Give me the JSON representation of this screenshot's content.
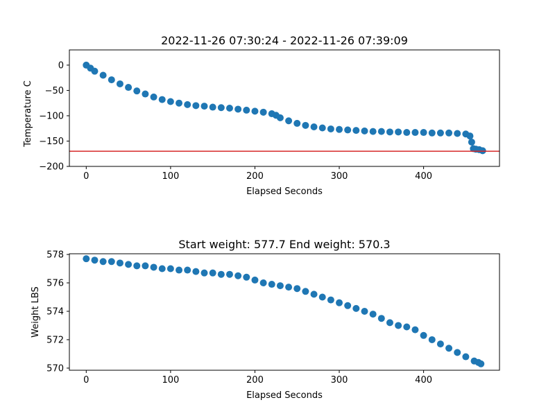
{
  "chart_data": [
    {
      "type": "scatter",
      "title": "2022-11-26 07:30:24 - 2022-11-26 07:39:09",
      "xlabel": "Elapsed Seconds",
      "ylabel": "Temperature C",
      "xlim": [
        -20,
        490
      ],
      "ylim": [
        -200,
        30
      ],
      "xticks": [
        0,
        100,
        200,
        300,
        400
      ],
      "yticks": [
        0,
        -50,
        -100,
        -150,
        -200
      ],
      "grid": false,
      "marker_color": "#1f77b4",
      "reference_line": {
        "y": -170,
        "color": "#d62728"
      },
      "series": [
        {
          "points": [
            [
              0,
              0
            ],
            [
              5,
              -6
            ],
            [
              10,
              -12
            ],
            [
              20,
              -20
            ],
            [
              30,
              -29
            ],
            [
              40,
              -37
            ],
            [
              50,
              -44
            ],
            [
              60,
              -51
            ],
            [
              70,
              -57
            ],
            [
              80,
              -63
            ],
            [
              90,
              -68
            ],
            [
              100,
              -72
            ],
            [
              110,
              -75
            ],
            [
              120,
              -78
            ],
            [
              130,
              -80
            ],
            [
              140,
              -81
            ],
            [
              150,
              -83
            ],
            [
              160,
              -84
            ],
            [
              170,
              -85
            ],
            [
              180,
              -87
            ],
            [
              190,
              -89
            ],
            [
              200,
              -91
            ],
            [
              210,
              -93
            ],
            [
              220,
              -96
            ],
            [
              225,
              -99
            ],
            [
              230,
              -104
            ],
            [
              240,
              -110
            ],
            [
              250,
              -115
            ],
            [
              260,
              -119
            ],
            [
              270,
              -122
            ],
            [
              280,
              -124
            ],
            [
              290,
              -126
            ],
            [
              300,
              -127
            ],
            [
              310,
              -128
            ],
            [
              320,
              -129
            ],
            [
              330,
              -130
            ],
            [
              340,
              -131
            ],
            [
              350,
              -131
            ],
            [
              360,
              -132
            ],
            [
              370,
              -132
            ],
            [
              380,
              -133
            ],
            [
              390,
              -133
            ],
            [
              400,
              -133
            ],
            [
              410,
              -134
            ],
            [
              420,
              -134
            ],
            [
              430,
              -134
            ],
            [
              440,
              -135
            ],
            [
              450,
              -136
            ],
            [
              455,
              -140
            ],
            [
              457,
              -152
            ],
            [
              459,
              -165
            ],
            [
              462,
              -166
            ],
            [
              466,
              -167
            ],
            [
              470,
              -169
            ]
          ]
        }
      ]
    },
    {
      "type": "scatter",
      "title": "Start weight: 577.7 End weight: 570.3",
      "xlabel": "Elapsed Seconds",
      "ylabel": "Weight LBS",
      "xlim": [
        -20,
        490
      ],
      "ylim": [
        569.85,
        578.05
      ],
      "xticks": [
        0,
        100,
        200,
        300,
        400
      ],
      "yticks": [
        578,
        576,
        574,
        572,
        570
      ],
      "grid": false,
      "marker_color": "#1f77b4",
      "series": [
        {
          "points": [
            [
              0,
              577.7
            ],
            [
              10,
              577.6
            ],
            [
              20,
              577.5
            ],
            [
              30,
              577.5
            ],
            [
              40,
              577.4
            ],
            [
              50,
              577.3
            ],
            [
              60,
              577.2
            ],
            [
              70,
              577.2
            ],
            [
              80,
              577.1
            ],
            [
              90,
              577.0
            ],
            [
              100,
              577.0
            ],
            [
              110,
              576.9
            ],
            [
              120,
              576.9
            ],
            [
              130,
              576.8
            ],
            [
              140,
              576.7
            ],
            [
              150,
              576.7
            ],
            [
              160,
              576.6
            ],
            [
              170,
              576.6
            ],
            [
              180,
              576.5
            ],
            [
              190,
              576.4
            ],
            [
              200,
              576.2
            ],
            [
              210,
              576.0
            ],
            [
              220,
              575.9
            ],
            [
              230,
              575.8
            ],
            [
              240,
              575.7
            ],
            [
              250,
              575.6
            ],
            [
              260,
              575.4
            ],
            [
              270,
              575.2
            ],
            [
              280,
              575.0
            ],
            [
              290,
              574.8
            ],
            [
              300,
              574.6
            ],
            [
              310,
              574.4
            ],
            [
              320,
              574.2
            ],
            [
              330,
              574.0
            ],
            [
              340,
              573.8
            ],
            [
              350,
              573.5
            ],
            [
              360,
              573.2
            ],
            [
              370,
              573.0
            ],
            [
              380,
              572.9
            ],
            [
              390,
              572.7
            ],
            [
              400,
              572.3
            ],
            [
              410,
              572.0
            ],
            [
              420,
              571.7
            ],
            [
              430,
              571.4
            ],
            [
              440,
              571.1
            ],
            [
              450,
              570.8
            ],
            [
              460,
              570.5
            ],
            [
              465,
              570.4
            ],
            [
              468,
              570.3
            ]
          ]
        }
      ]
    }
  ]
}
